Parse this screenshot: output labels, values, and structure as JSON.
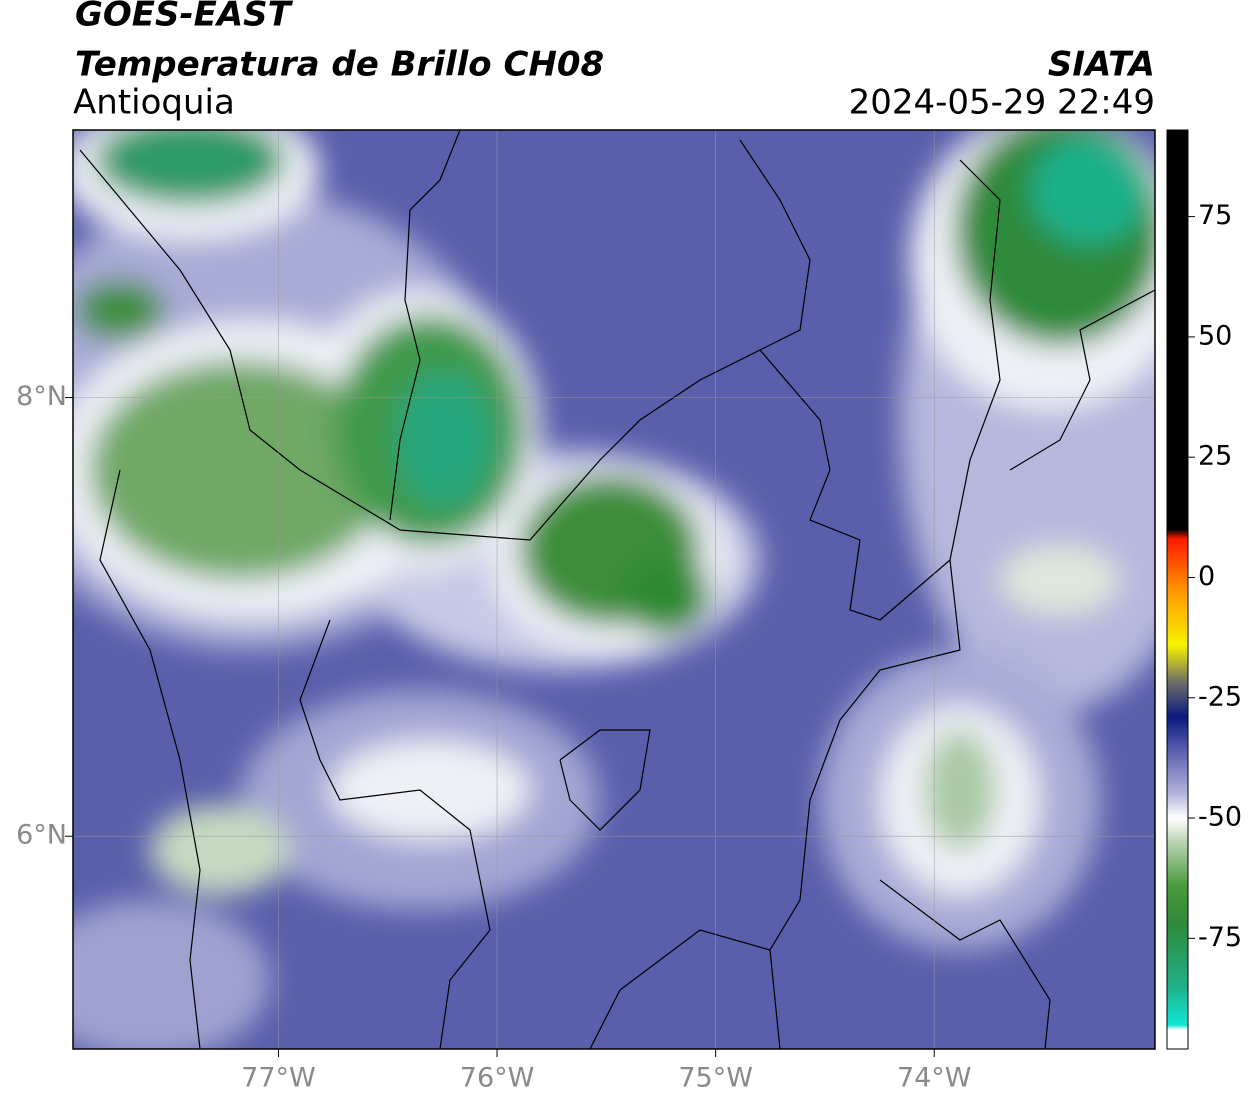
{
  "header": {
    "title": "GOES-EAST",
    "subtitle": "Temperatura de Brillo CH08",
    "region": "Antioquia",
    "agency": "SIATA",
    "datetime": "2024-05-29 22:49"
  },
  "map": {
    "xlim": [
      -77.94,
      -72.99
    ],
    "ylim": [
      5.03,
      9.22
    ],
    "grid": true,
    "xticks": [
      {
        "value": -77,
        "label": "77°W"
      },
      {
        "value": -76,
        "label": "76°W"
      },
      {
        "value": -75,
        "label": "75°W"
      },
      {
        "value": -74,
        "label": "74°W"
      }
    ],
    "yticks": [
      {
        "value": 8,
        "label": "8°N"
      },
      {
        "value": 6,
        "label": "6°N"
      }
    ]
  },
  "colorbar": {
    "lim": [
      -98,
      93
    ],
    "ticks": [
      75,
      50,
      25,
      0,
      -25,
      -50,
      -75
    ],
    "colormap": [
      {
        "value": -98,
        "color": "#ffffff"
      },
      {
        "value": -94,
        "color": "#ffffff"
      },
      {
        "value": -93,
        "color": "#11e6d6"
      },
      {
        "value": -85,
        "color": "#1fb08a"
      },
      {
        "value": -72,
        "color": "#2f8a3a"
      },
      {
        "value": -64,
        "color": "#4b9a3c"
      },
      {
        "value": -55,
        "color": "#b9d4b2"
      },
      {
        "value": -50,
        "color": "#ffffff"
      },
      {
        "value": -45,
        "color": "#b3b5dc"
      },
      {
        "value": -36,
        "color": "#5b5fae"
      },
      {
        "value": -29,
        "color": "#0a1a80"
      },
      {
        "value": -22,
        "color": "#6a6a6a"
      },
      {
        "value": -14,
        "color": "#f7f200"
      },
      {
        "value": -3,
        "color": "#ff9a00"
      },
      {
        "value": 8,
        "color": "#ff1a00"
      },
      {
        "value": 10,
        "color": "#000000"
      },
      {
        "value": 93,
        "color": "#000000"
      }
    ]
  }
}
